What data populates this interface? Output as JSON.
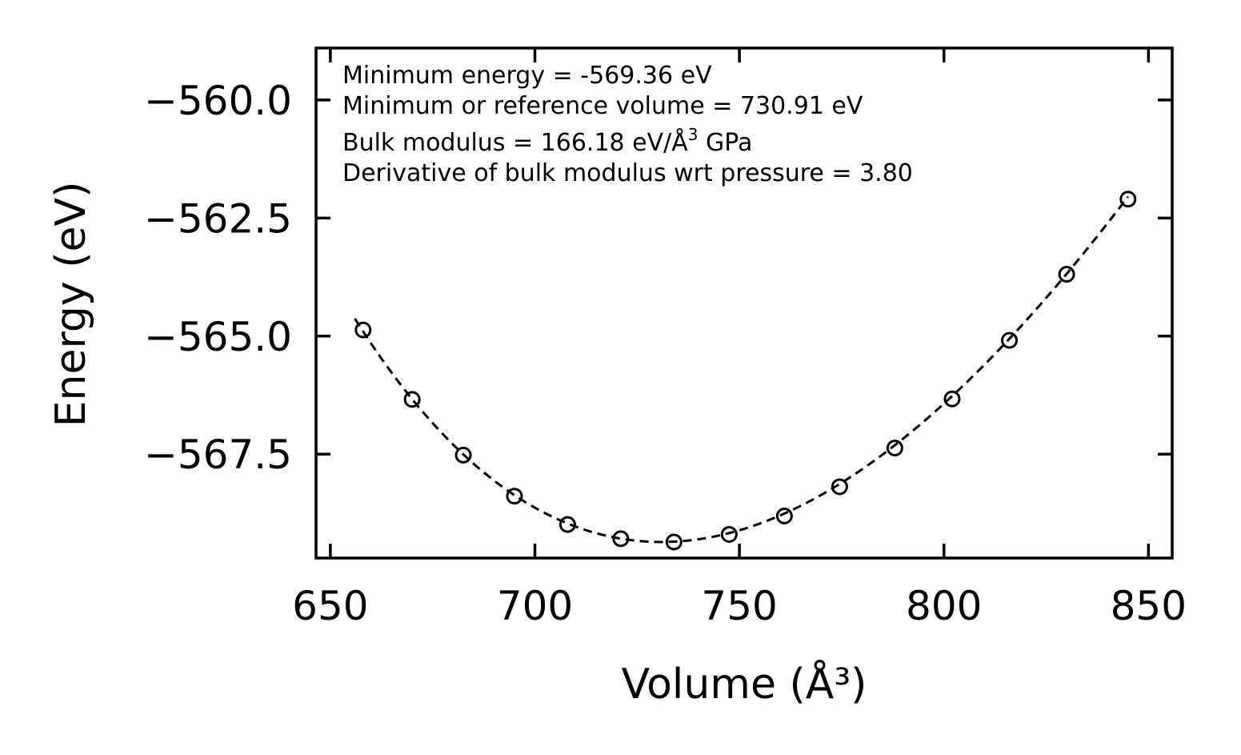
{
  "chart_data": {
    "type": "scatter",
    "title": "",
    "xlabel": "Volume (Å³)",
    "ylabel": "Energy (eV)",
    "xlim": [
      646.5,
      855.8
    ],
    "ylim": [
      -569.7,
      -558.9
    ],
    "x_ticks": [
      650,
      700,
      750,
      800,
      850
    ],
    "x_tick_labels": [
      "650",
      "700",
      "750",
      "800",
      "850"
    ],
    "y_ticks": [
      -560.0,
      -562.5,
      -565.0,
      -567.5
    ],
    "y_tick_labels": [
      "−560.0",
      "−562.5",
      "−565.0",
      "−567.5"
    ],
    "grid": false,
    "series": [
      {
        "name": "data",
        "style": "open-circle",
        "x": [
          658,
          670,
          682.5,
          695,
          708,
          721,
          734,
          747.5,
          761,
          774.5,
          788,
          802,
          816,
          830,
          845
        ],
        "y": [
          -564.87,
          -566.34,
          -567.52,
          -568.39,
          -568.99,
          -569.29,
          -569.36,
          -569.2,
          -568.81,
          -568.19,
          -567.37,
          -566.33,
          -565.09,
          -563.69,
          -562.1
        ]
      },
      {
        "name": "fit",
        "style": "dashed-line",
        "fit_parameters": {
          "E0": -569.36,
          "V0": 730.91,
          "B": 166.18,
          "Bp": 3.8
        },
        "x_range": [
          656,
          845
        ]
      }
    ],
    "annotations": [
      "Minimum energy = -569.36 eV",
      "Minimum or reference volume = 730.91 eV",
      "Bulk modulus = 166.18 eV/Å",
      "3",
      " GPa",
      "Derivative of bulk modulus wrt pressure = 3.80"
    ]
  },
  "colors": {
    "axes": "#000000",
    "markers": "#000000",
    "fit_line": "#000000",
    "background": "#ffffff"
  }
}
